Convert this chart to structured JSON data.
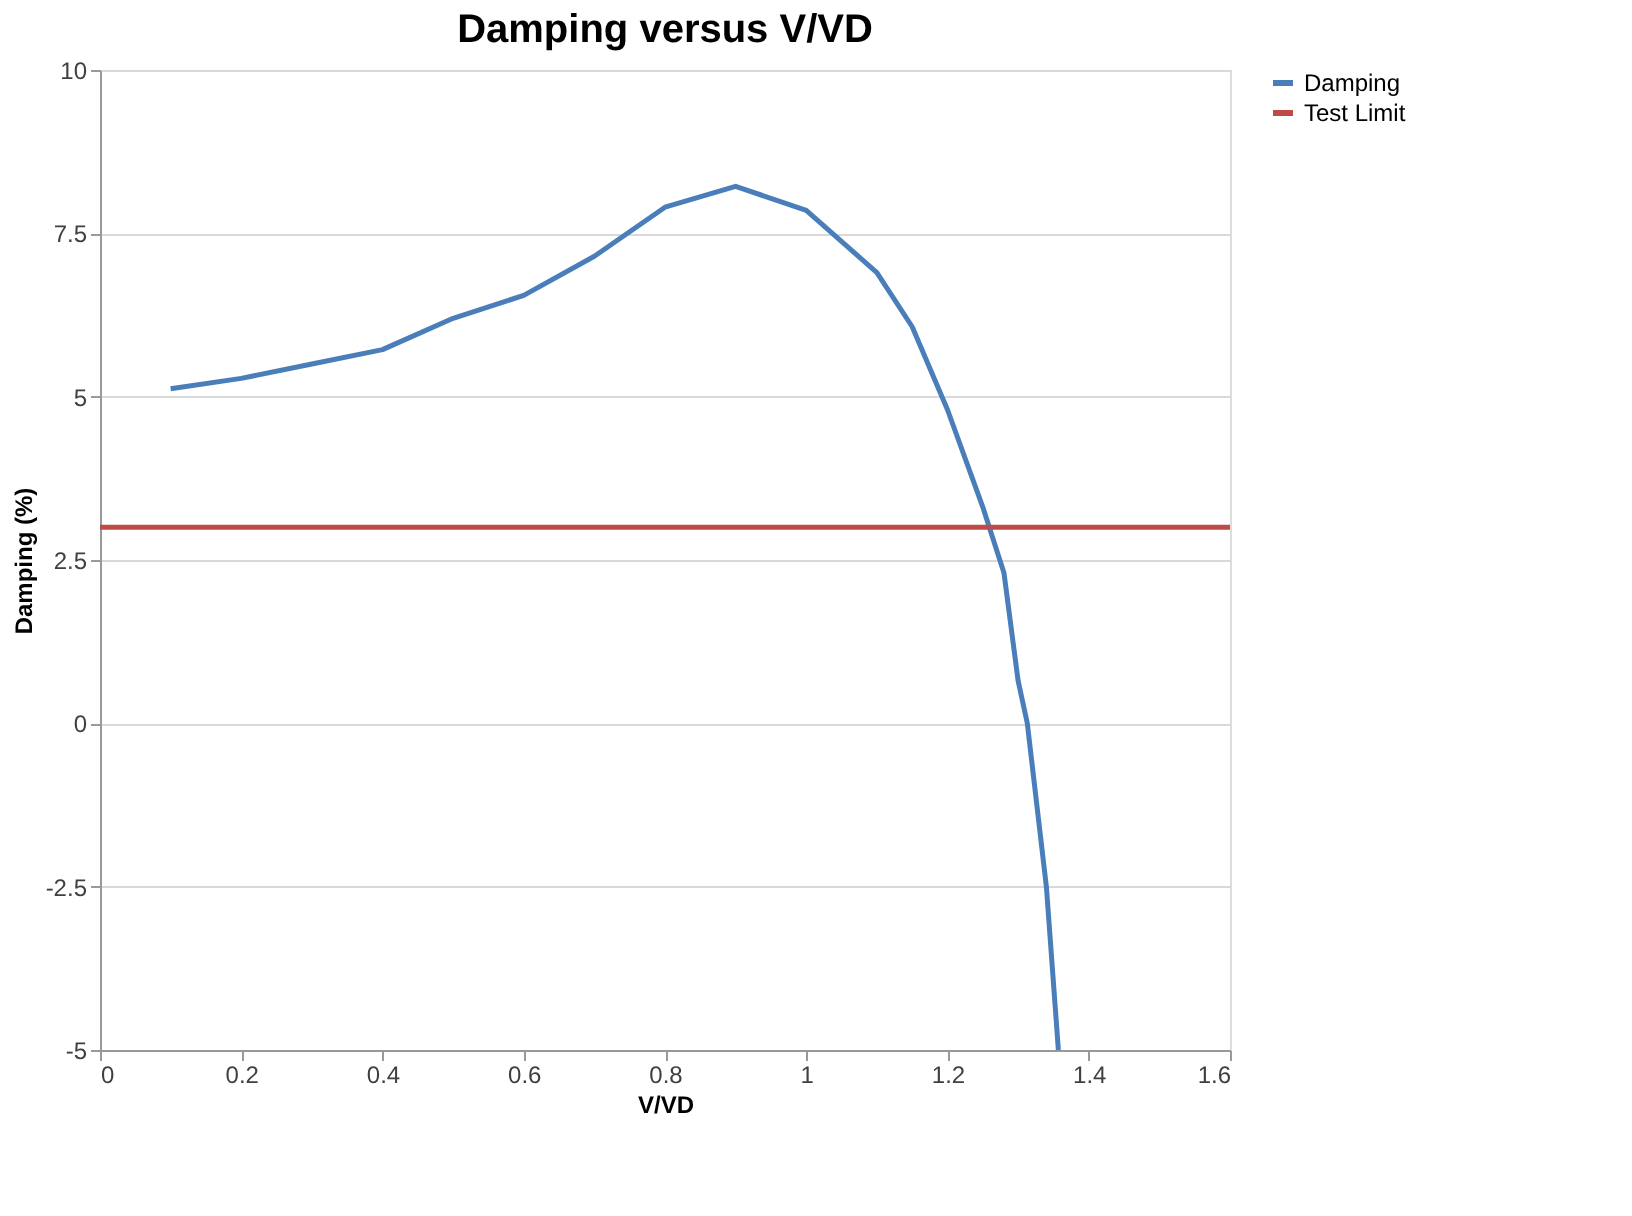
{
  "chart_data": {
    "type": "line",
    "title": "Damping versus V/VD",
    "xlabel": "V/VD",
    "ylabel": "Damping (%)",
    "xlim": [
      0,
      1.6
    ],
    "xticks": [
      0,
      0.2,
      0.4,
      0.6,
      0.8,
      1,
      1.2,
      1.4,
      1.6
    ],
    "ylim": [
      -5,
      10
    ],
    "yticks": [
      -5,
      -2.5,
      0,
      2.5,
      5,
      7.5,
      10
    ],
    "grid": "y",
    "legend": "right",
    "marker": "none",
    "line_style": "solid",
    "series": [
      {
        "name": "Damping",
        "color": "#4a7ebb",
        "x": [
          0.1,
          0.2,
          0.3,
          0.4,
          0.5,
          0.6,
          0.7,
          0.8,
          0.9,
          1.0,
          1.1,
          1.15,
          1.2,
          1.25,
          1.28,
          1.3,
          1.313,
          1.34,
          1.357
        ],
        "values": [
          5.12,
          5.28,
          5.5,
          5.72,
          6.2,
          6.55,
          7.15,
          7.9,
          8.22,
          7.85,
          6.9,
          6.07,
          4.8,
          3.31,
          2.3,
          0.65,
          0,
          -2.5,
          -5
        ]
      },
      {
        "name": "Test Limit",
        "color": "#be4b48",
        "x": [
          0,
          1.6
        ],
        "values": [
          3,
          3
        ]
      }
    ]
  }
}
